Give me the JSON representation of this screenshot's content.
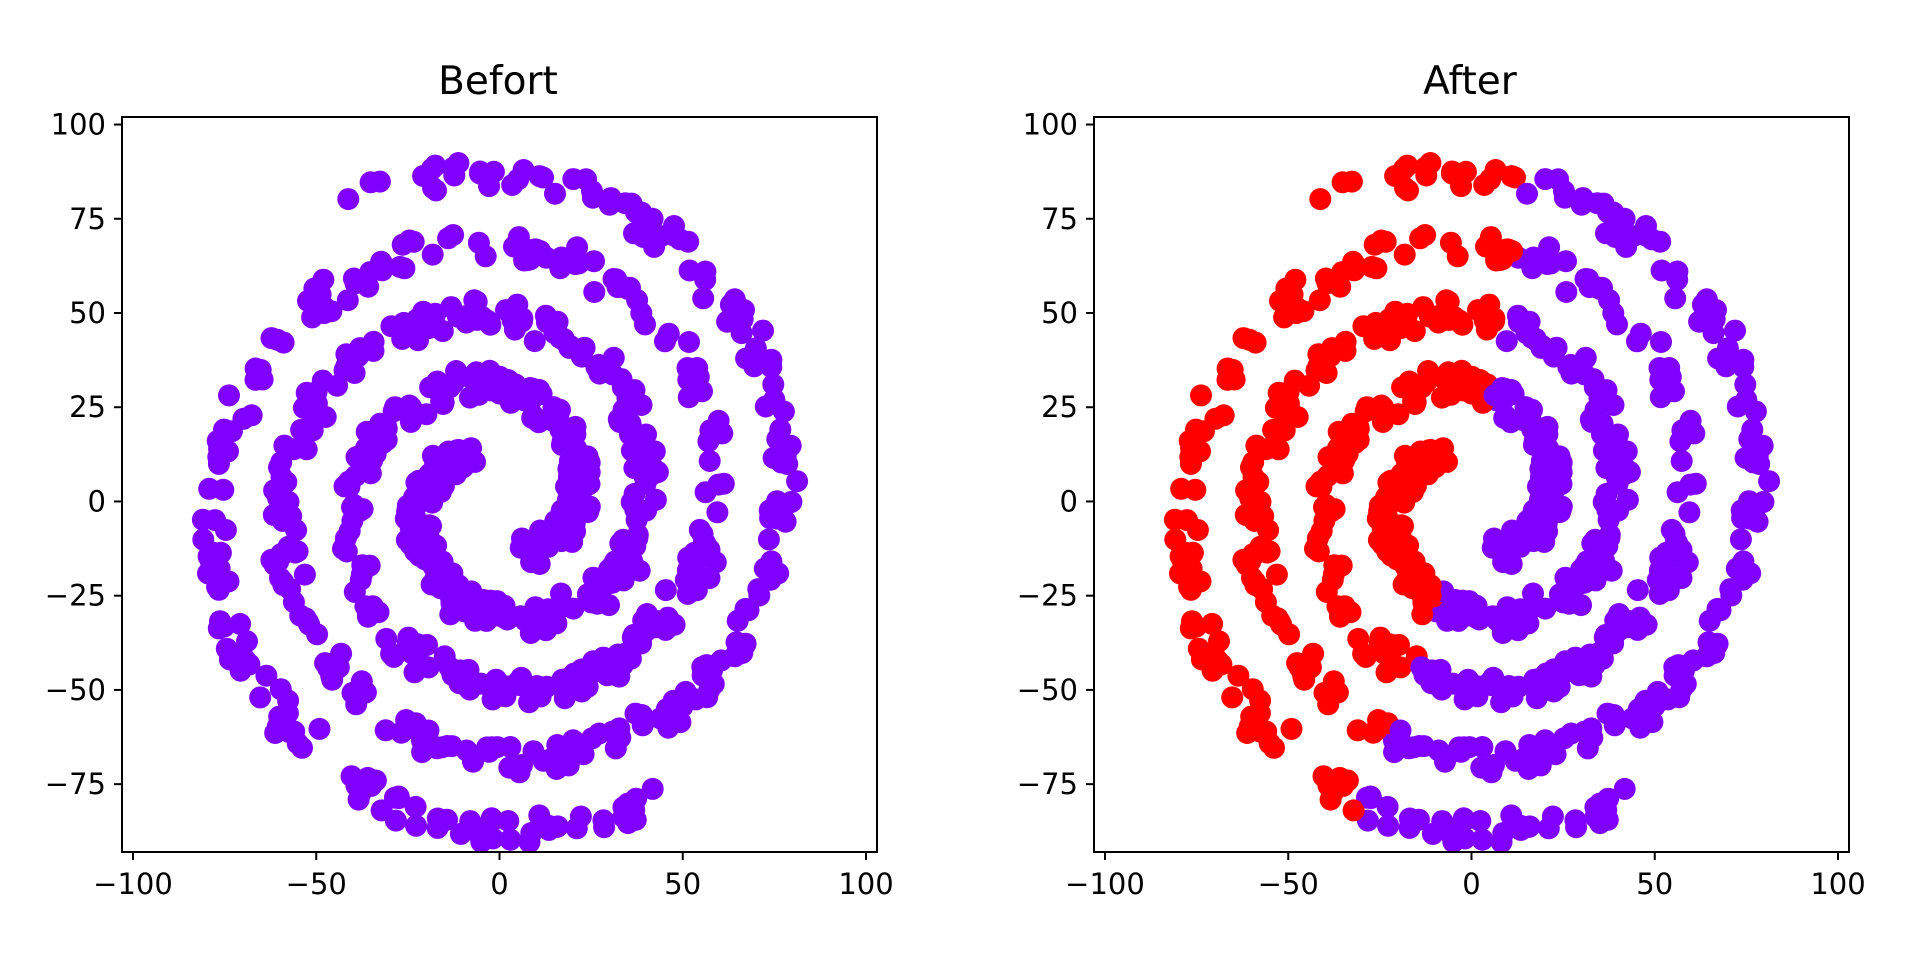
{
  "chart_data": [
    {
      "type": "scatter",
      "title": "Befort",
      "xlim": [
        -103,
        103
      ],
      "ylim": [
        -93,
        102
      ],
      "x_ticks": [
        -100,
        -50,
        0,
        50,
        100
      ],
      "x_tick_labels": [
        "−100",
        "−50",
        "0",
        "50",
        "100"
      ],
      "y_ticks": [
        -75,
        -50,
        -25,
        0,
        25,
        50,
        75,
        100
      ],
      "y_tick_labels": [
        "−75",
        "−50",
        "−25",
        "0",
        "25",
        "50",
        "75",
        "100"
      ],
      "series": [
        {
          "color": "#8000ff",
          "data_shape": "two interleaved Archimedean spiral arms with jittered points",
          "arms": [
            {
              "theta_start_deg": -60,
              "theta_end_deg": 660,
              "r_start": 15,
              "r_end": 90,
              "count": 450
            },
            {
              "theta_start_deg": 120,
              "theta_end_deg": 840,
              "r_start": 15,
              "r_end": 90,
              "count": 450
            }
          ]
        }
      ]
    },
    {
      "type": "scatter",
      "title": "After",
      "xlim": [
        -103,
        103
      ],
      "ylim": [
        -93,
        102
      ],
      "x_ticks": [
        -100,
        -50,
        0,
        50,
        100
      ],
      "x_tick_labels": [
        "−100",
        "−50",
        "0",
        "50",
        "100"
      ],
      "y_ticks": [
        -75,
        -50,
        -25,
        0,
        25,
        50,
        75,
        100
      ],
      "y_tick_labels": [
        "−75",
        "−50",
        "−25",
        "0",
        "25",
        "50",
        "75",
        "100"
      ],
      "series": [
        {
          "color": "#ff0000",
          "data_shape": "points whose angle falls in the left half-plane region",
          "split_angle_range_deg": [
            80,
            250
          ]
        },
        {
          "color": "#8000ff",
          "data_shape": "remaining points of the same two spiral arms"
        }
      ]
    }
  ],
  "colors": {
    "purple": "#8000ff",
    "red": "#ff0000",
    "axes": "#000000",
    "background": "#ffffff"
  }
}
